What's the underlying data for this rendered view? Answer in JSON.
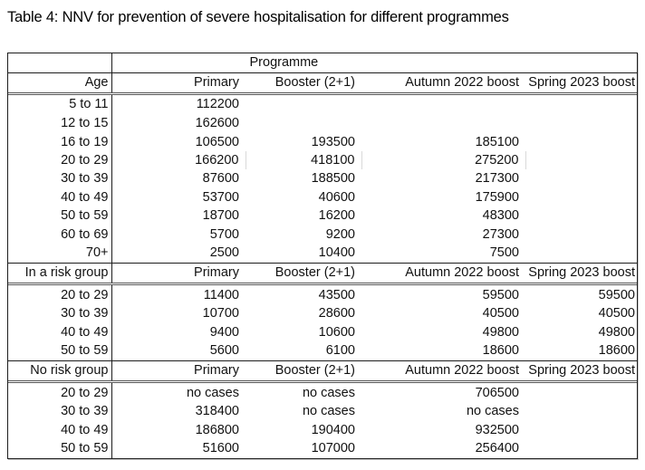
{
  "title": "Table 4: NNV for prevention of severe hospitalisation for different programmes",
  "table": {
    "programme_label": "Programme",
    "sections": [
      {
        "header": [
          "Age",
          "Primary",
          "Booster (2+1)",
          "Autumn 2022 boost",
          "Spring 2023 boost"
        ],
        "rows": [
          [
            "5 to 11",
            "112200",
            "",
            "",
            ""
          ],
          [
            "12 to 15",
            "162600",
            "",
            "",
            ""
          ],
          [
            "16 to 19",
            "106500",
            "193500",
            "185100",
            ""
          ],
          [
            "20 to 29",
            "166200",
            "418100",
            "275200",
            ""
          ],
          [
            "30 to 39",
            "87600",
            "188500",
            "217300",
            ""
          ],
          [
            "40 to 49",
            "53700",
            "40600",
            "175900",
            ""
          ],
          [
            "50 to 59",
            "18700",
            "16200",
            "48300",
            ""
          ],
          [
            "60 to 69",
            "5700",
            "9200",
            "27300",
            ""
          ],
          [
            "70+",
            "2500",
            "10400",
            "7500",
            ""
          ]
        ]
      },
      {
        "header": [
          "In a risk group",
          "Primary",
          "Booster (2+1)",
          "Autumn 2022 boost",
          "Spring 2023 boost"
        ],
        "rows": [
          [
            "20 to 29",
            "11400",
            "43500",
            "59500",
            "59500"
          ],
          [
            "30 to 39",
            "10700",
            "28600",
            "40500",
            "40500"
          ],
          [
            "40 to 49",
            "9400",
            "10600",
            "49800",
            "49800"
          ],
          [
            "50 to 59",
            "5600",
            "6100",
            "18600",
            "18600"
          ]
        ]
      },
      {
        "header": [
          "No risk group",
          "Primary",
          "Booster (2+1)",
          "Autumn 2022 boost",
          "Spring 2023 boost"
        ],
        "rows": [
          [
            "20 to 29",
            "no cases",
            "no cases",
            "706500",
            ""
          ],
          [
            "30 to 39",
            "318400",
            "no cases",
            "no cases",
            ""
          ],
          [
            "40 to 49",
            "186800",
            "190400",
            "932500",
            ""
          ],
          [
            "50 to 59",
            "51600",
            "107000",
            "256400",
            ""
          ]
        ]
      }
    ]
  }
}
